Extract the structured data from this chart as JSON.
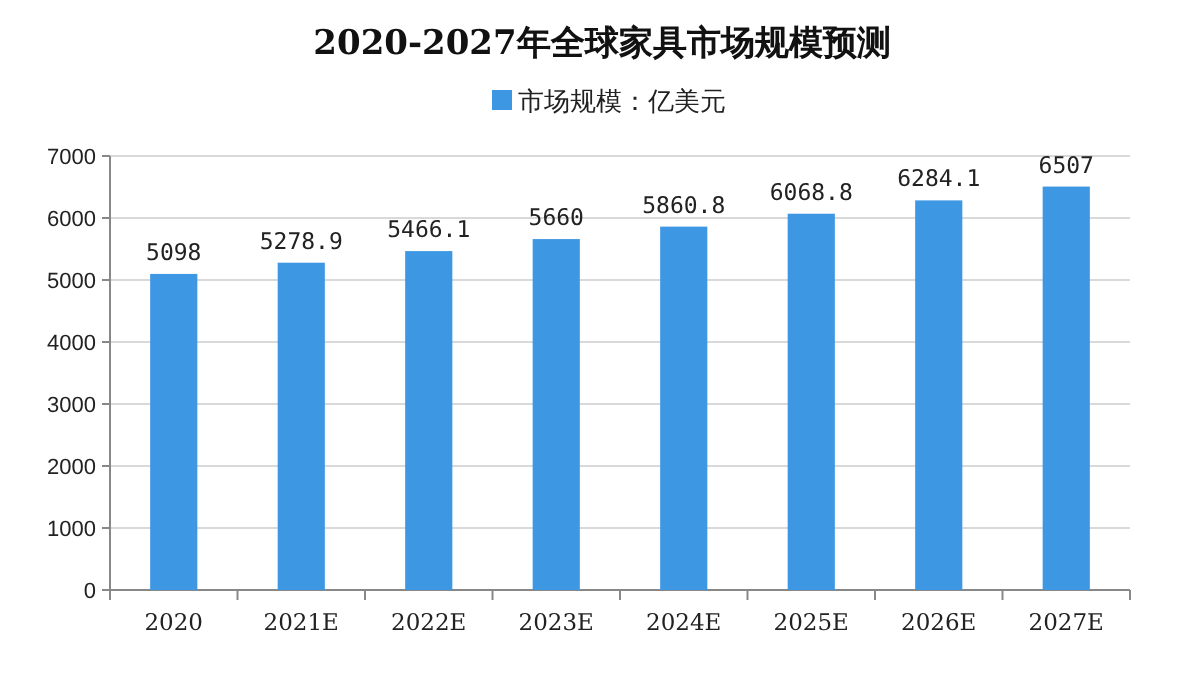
{
  "chart_data": {
    "type": "bar",
    "title": "2020-2027年全球家具市场规模预测",
    "categories": [
      "2020",
      "2021E",
      "2022E",
      "2023E",
      "2024E",
      "2025E",
      "2026E",
      "2027E"
    ],
    "series": [
      {
        "name": "市场规模：亿美元",
        "color": "#3d97e3",
        "values": [
          5098,
          5278.9,
          5466.1,
          5660,
          5860.8,
          6068.8,
          6284.1,
          6507
        ]
      }
    ],
    "ylim": [
      0,
      7000
    ],
    "yticks": [
      0,
      1000,
      2000,
      3000,
      4000,
      5000,
      6000,
      7000
    ],
    "grid": "y",
    "legend": "top",
    "data_labels": true
  }
}
